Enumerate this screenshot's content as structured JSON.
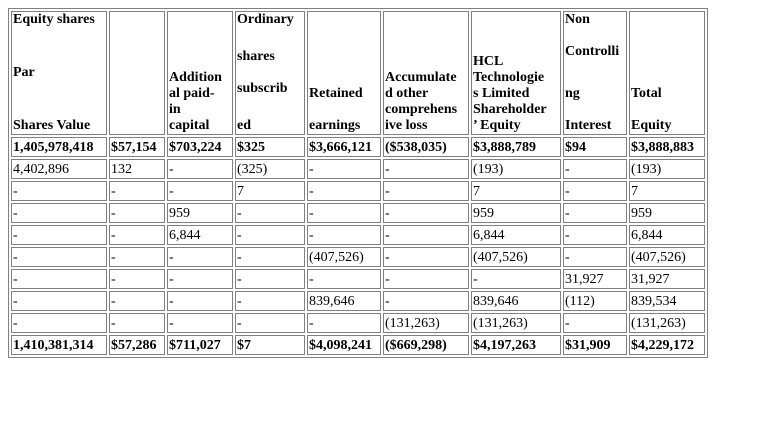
{
  "headers": [
    {
      "lines_top": [
        "Equity shares"
      ],
      "lines_mid": [
        "Par"
      ],
      "lines_bottom": [
        "Shares Value"
      ]
    },
    {
      "lines_top": [],
      "lines_mid": [],
      "lines_bottom": [
        ""
      ]
    },
    {
      "lines_top": [],
      "lines_mid": [],
      "lines_bottom": [
        "Addition",
        "al paid-",
        "in",
        "capital"
      ]
    },
    {
      "lines_top": [
        "Ordinary"
      ],
      "lines_mid": [
        "shares",
        "",
        "subscrib"
      ],
      "lines_bottom": [
        "ed"
      ]
    },
    {
      "lines_top": [],
      "lines_mid": [],
      "lines_bottom": [
        "Retained",
        "",
        "earnings"
      ]
    },
    {
      "lines_top": [],
      "lines_mid": [],
      "lines_bottom": [
        "Accumulate",
        "d other",
        "comprehens",
        "ive loss"
      ]
    },
    {
      "lines_top": [],
      "lines_mid": [],
      "lines_bottom": [
        "HCL",
        "Technologie",
        "s Limited",
        "Shareholder",
        "’ Equity"
      ]
    },
    {
      "lines_top": [
        "Non",
        "",
        "Controlli"
      ],
      "lines_mid": [],
      "lines_bottom": [
        "ng",
        "",
        "Interest"
      ]
    },
    {
      "lines_top": [],
      "lines_mid": [],
      "lines_bottom": [
        "Total",
        "",
        "Equity"
      ]
    }
  ],
  "rows": [
    {
      "bold": true,
      "cells": [
        "1,405,978,418",
        "$57,154",
        "$703,224",
        "$325",
        "$3,666,121",
        "($538,035)",
        "$3,888,789",
        "$94",
        "$3,888,883"
      ]
    },
    {
      "bold": false,
      "cells": [
        "4,402,896",
        "132",
        "-",
        "(325)",
        "-",
        "-",
        "(193)",
        "-",
        "(193)"
      ]
    },
    {
      "bold": false,
      "cells": [
        "-",
        "-",
        "-",
        "7",
        "-",
        "-",
        "7",
        "-",
        "7"
      ]
    },
    {
      "bold": false,
      "cells": [
        "-",
        "-",
        "959",
        "-",
        "-",
        "-",
        "959",
        "-",
        "959"
      ]
    },
    {
      "bold": false,
      "cells": [
        "-",
        "-",
        "6,844",
        "-",
        "-",
        "-",
        "6,844",
        "-",
        "6,844"
      ]
    },
    {
      "bold": false,
      "cells": [
        "-",
        "-",
        "-",
        "-",
        "(407,526)",
        "-",
        "(407,526)",
        "-",
        "(407,526)"
      ]
    },
    {
      "bold": false,
      "cells": [
        "-",
        "-",
        "-",
        "-",
        "-",
        "-",
        "-",
        "31,927",
        "31,927"
      ]
    },
    {
      "bold": false,
      "cells": [
        "-",
        "-",
        "-",
        "-",
        "839,646",
        "-",
        "839,646",
        "(112)",
        "839,534"
      ]
    },
    {
      "bold": false,
      "cells": [
        "-",
        "-",
        "-",
        "-",
        "-",
        "(131,263)",
        "(131,263)",
        "-",
        "(131,263)"
      ]
    },
    {
      "bold": true,
      "cells": [
        "1,410,381,314",
        "$57,286",
        "$711,027",
        "$7",
        "$4,098,241",
        "($669,298)",
        "$4,197,263",
        "$31,909",
        "$4,229,172"
      ]
    }
  ]
}
